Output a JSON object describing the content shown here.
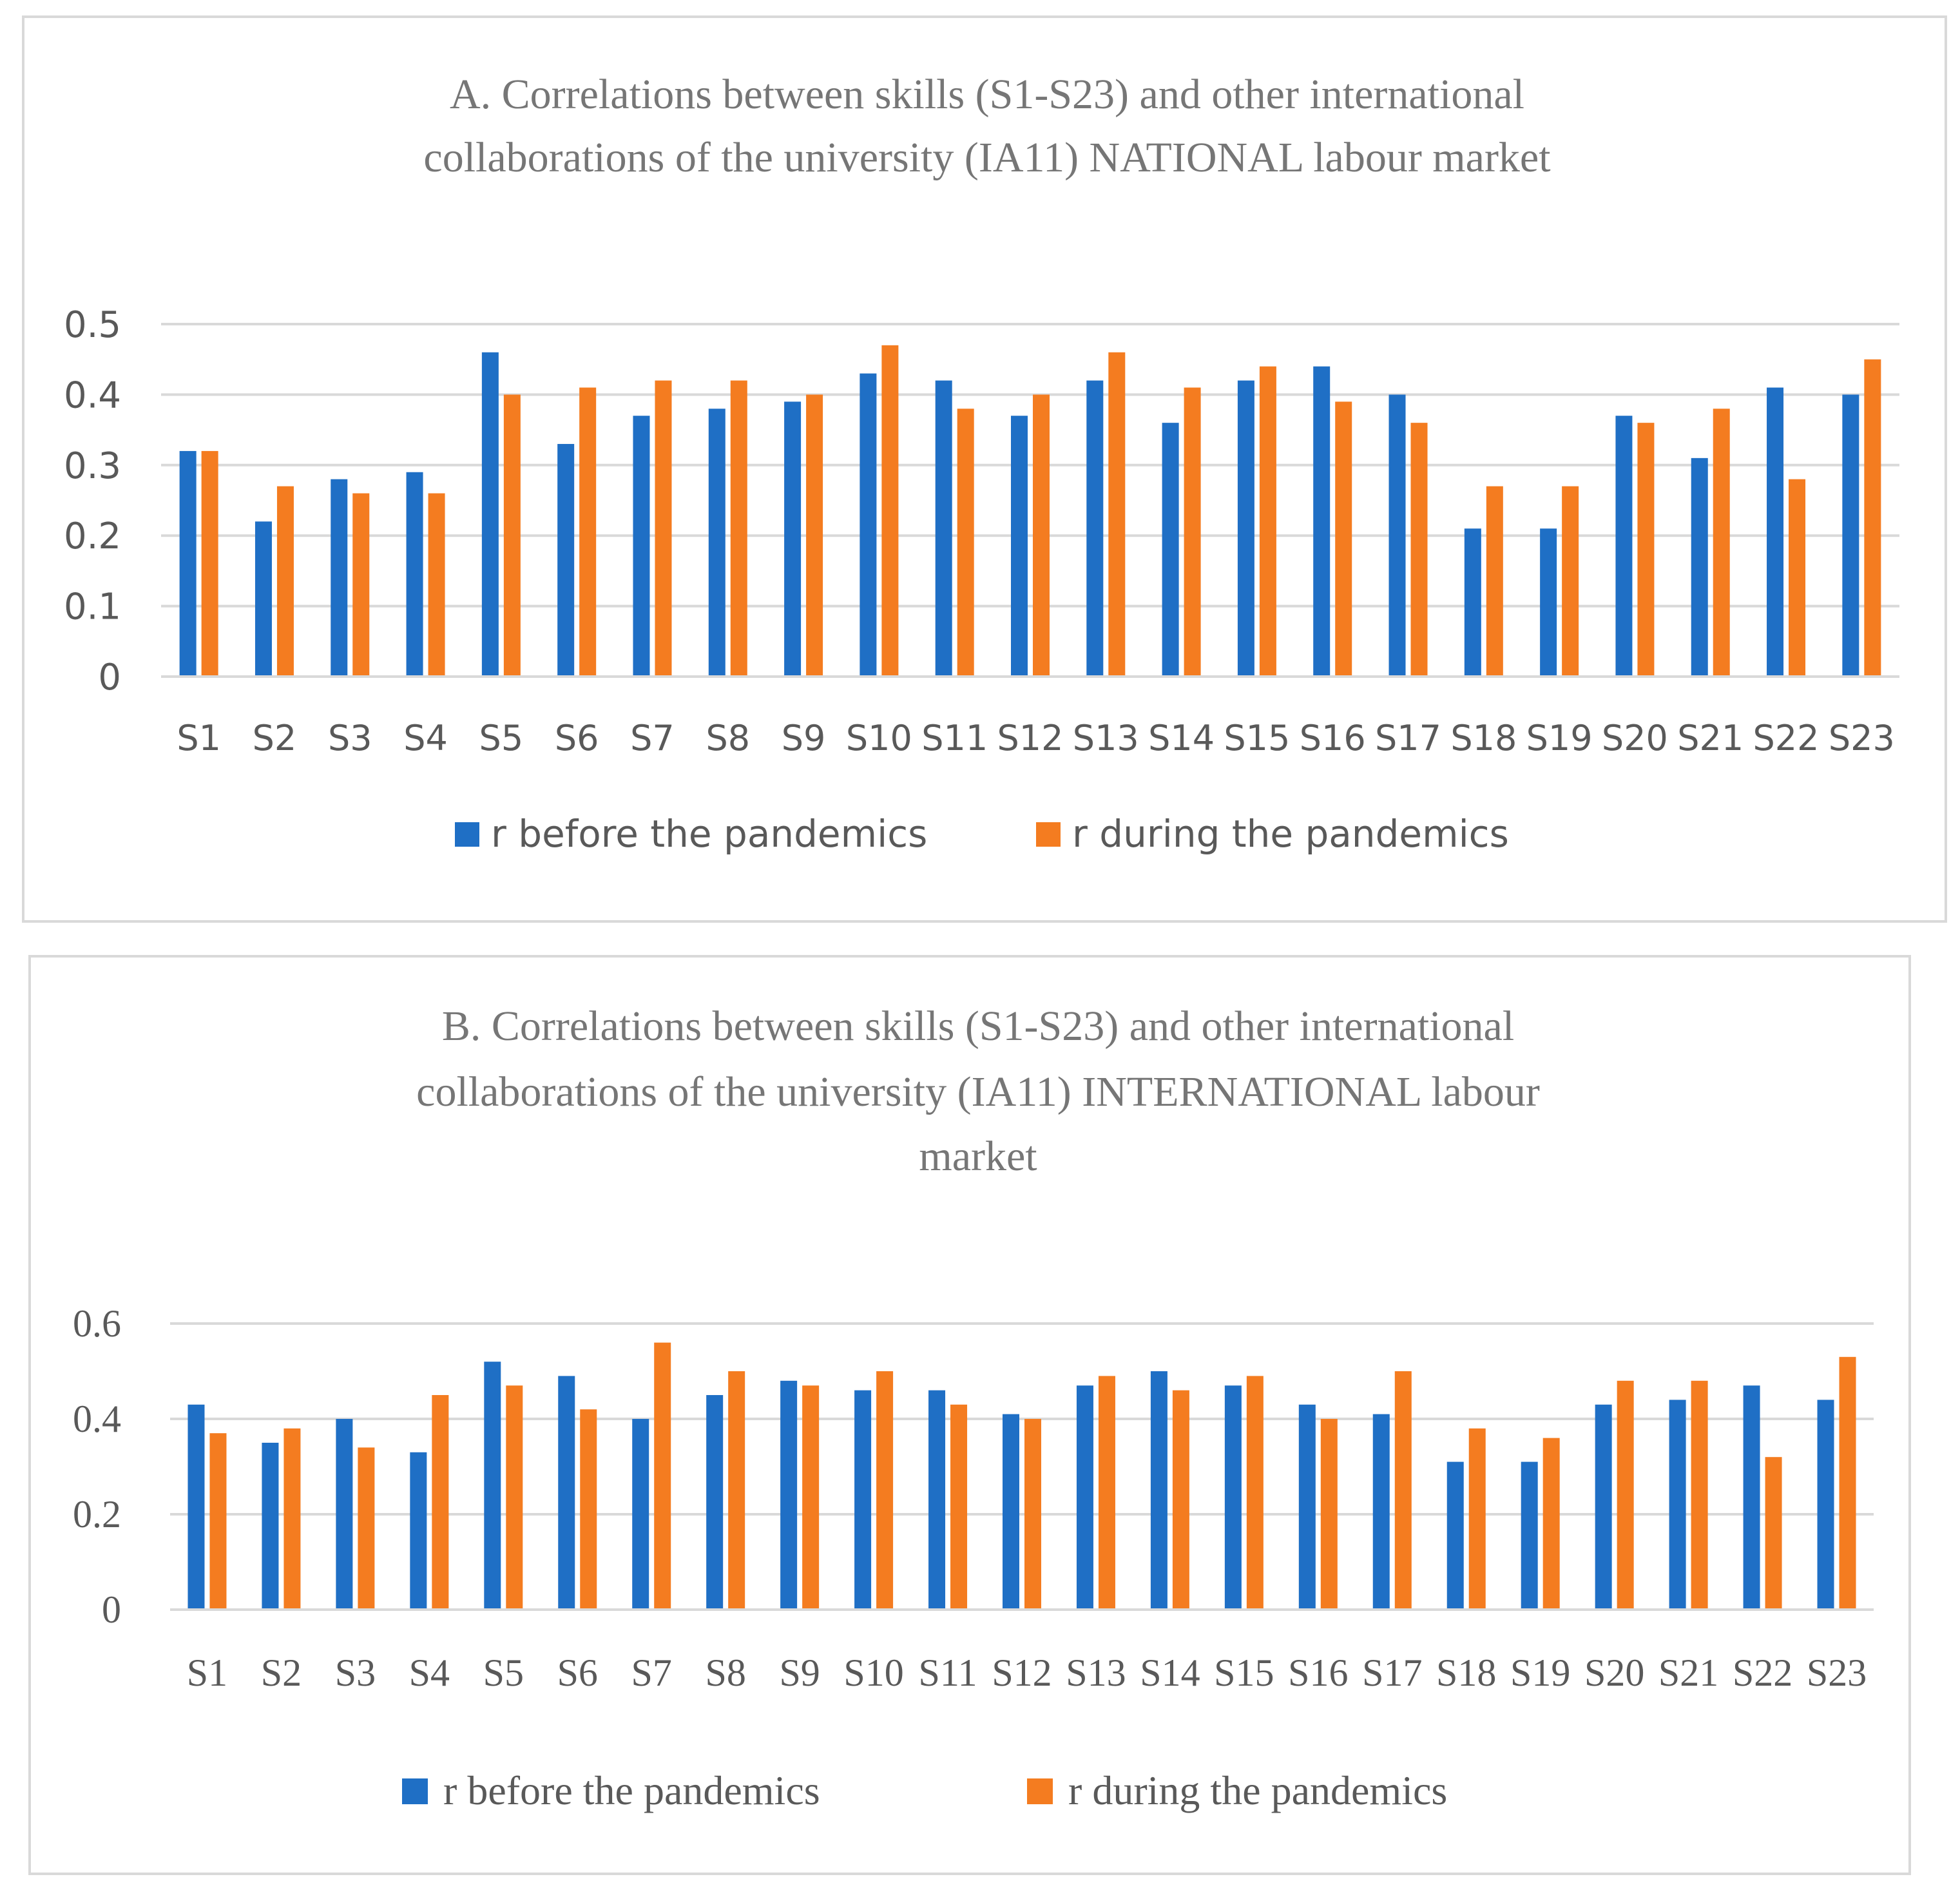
{
  "chart_data": [
    {
      "type": "bar",
      "title_lines": [
        "A. Correlations between skills (S1-S23) and other international",
        "collaborations of the university (IA11) NATIONAL labour market"
      ],
      "categories": [
        "S1",
        "S2",
        "S3",
        "S4",
        "S5",
        "S6",
        "S7",
        "S8",
        "S9",
        "S10",
        "S11",
        "S12",
        "S13",
        "S14",
        "S15",
        "S16",
        "S17",
        "S18",
        "S19",
        "S20",
        "S21",
        "S22",
        "S23"
      ],
      "series": [
        {
          "name": "r before the pandemics",
          "color": "#1f6fc5",
          "values": [
            0.32,
            0.22,
            0.28,
            0.29,
            0.46,
            0.33,
            0.37,
            0.38,
            0.39,
            0.43,
            0.42,
            0.37,
            0.42,
            0.36,
            0.42,
            0.44,
            0.4,
            0.21,
            0.21,
            0.37,
            0.31,
            0.41,
            0.4
          ]
        },
        {
          "name": "r during the pandemics",
          "color": "#f47c20",
          "values": [
            0.32,
            0.27,
            0.26,
            0.26,
            0.4,
            0.41,
            0.42,
            0.42,
            0.4,
            0.47,
            0.38,
            0.4,
            0.46,
            0.41,
            0.44,
            0.39,
            0.36,
            0.27,
            0.27,
            0.36,
            0.38,
            0.28,
            0.45
          ]
        }
      ],
      "ylim": [
        0,
        0.5
      ],
      "yticks": [
        0,
        0.1,
        0.2,
        0.3,
        0.4,
        0.5
      ],
      "ytick_labels": [
        "0",
        "0.1",
        "0.2",
        "0.3",
        "0.4",
        "0.5"
      ],
      "grid": true,
      "legend": "bottom"
    },
    {
      "type": "bar",
      "title_lines": [
        "B. Correlations between skills (S1-S23) and other international",
        "collaborations of the university (IA11) INTERNATIONAL labour",
        "market"
      ],
      "categories": [
        "S1",
        "S2",
        "S3",
        "S4",
        "S5",
        "S6",
        "S7",
        "S8",
        "S9",
        "S10",
        "S11",
        "S12",
        "S13",
        "S14",
        "S15",
        "S16",
        "S17",
        "S18",
        "S19",
        "S20",
        "S21",
        "S22",
        "S23"
      ],
      "series": [
        {
          "name": "r before the pandemics",
          "color": "#1f6fc5",
          "values": [
            0.43,
            0.35,
            0.4,
            0.33,
            0.52,
            0.49,
            0.4,
            0.45,
            0.48,
            0.46,
            0.46,
            0.41,
            0.47,
            0.5,
            0.47,
            0.43,
            0.41,
            0.31,
            0.31,
            0.43,
            0.44,
            0.47,
            0.44
          ]
        },
        {
          "name": "r during the pandemics",
          "color": "#f47c20",
          "values": [
            0.37,
            0.38,
            0.34,
            0.45,
            0.47,
            0.42,
            0.56,
            0.5,
            0.47,
            0.5,
            0.43,
            0.4,
            0.49,
            0.46,
            0.49,
            0.4,
            0.5,
            0.38,
            0.36,
            0.48,
            0.48,
            0.32,
            0.53
          ]
        }
      ],
      "ylim": [
        0,
        0.6
      ],
      "yticks": [
        0,
        0.2,
        0.4,
        0.6
      ],
      "ytick_labels": [
        "0",
        "0.2",
        "0.4",
        "0.6"
      ],
      "grid": true,
      "legend": "bottom"
    }
  ]
}
